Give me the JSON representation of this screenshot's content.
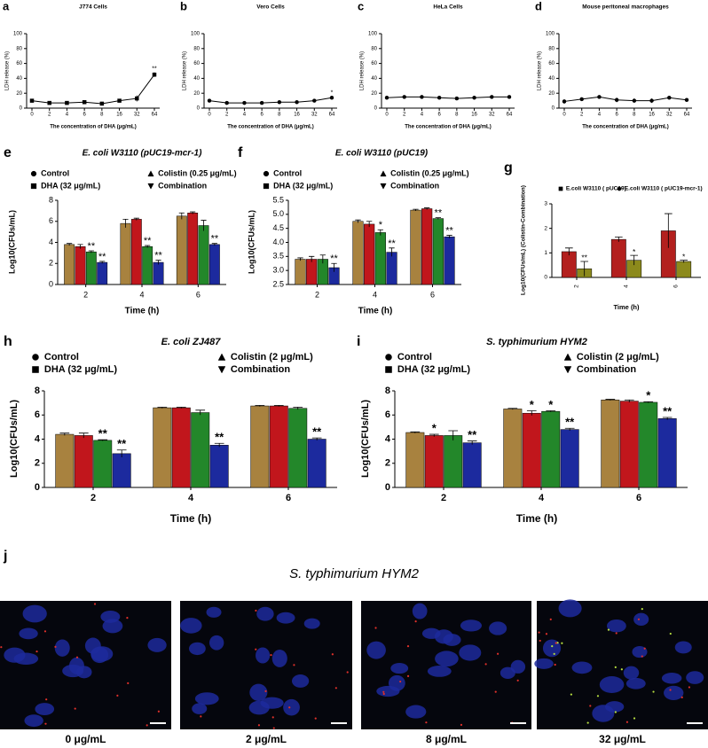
{
  "chart_data": [
    {
      "panel_label": "a",
      "type": "line",
      "title": "J774 Cells",
      "x_label": "The concentration of DHA (μg/mL)",
      "y_label": "LDH release (%)",
      "categories": [
        "0",
        "2",
        "4",
        "6",
        "8",
        "16",
        "32",
        "64"
      ],
      "ylim": [
        0,
        100
      ],
      "yticks": [
        0,
        20,
        40,
        60,
        80,
        100
      ],
      "series": [
        {
          "color": "#000000",
          "marker": "square",
          "values": [
            10,
            7,
            7,
            8,
            6,
            10,
            13,
            45
          ],
          "errors": [
            2,
            1,
            1,
            1,
            1,
            1,
            4,
            3
          ],
          "significance": [
            null,
            null,
            null,
            null,
            null,
            null,
            null,
            "**"
          ]
        }
      ]
    },
    {
      "panel_label": "b",
      "type": "line",
      "title": "Vero Cells",
      "x_label": "The concentration of DHA (μg/mL)",
      "y_label": "LDH release (%)",
      "categories": [
        "0",
        "2",
        "4",
        "6",
        "8",
        "16",
        "32",
        "64"
      ],
      "ylim": [
        0,
        100
      ],
      "yticks": [
        0,
        20,
        40,
        60,
        80,
        100
      ],
      "series": [
        {
          "color": "#000000",
          "marker": "circle",
          "values": [
            10,
            7,
            7,
            7,
            8,
            8,
            10,
            14
          ],
          "errors": [
            1,
            1,
            1,
            1,
            1,
            1,
            1,
            2
          ],
          "significance": [
            null,
            null,
            null,
            null,
            null,
            null,
            null,
            "*"
          ]
        }
      ]
    },
    {
      "panel_label": "c",
      "type": "line",
      "title": "HeLa Cells",
      "x_label": "The concentration of DHA (μg/mL)",
      "y_label": "LDH release (%)",
      "categories": [
        "0",
        "2",
        "4",
        "6",
        "8",
        "16",
        "32",
        "64"
      ],
      "ylim": [
        0,
        100
      ],
      "yticks": [
        0,
        20,
        40,
        60,
        80,
        100
      ],
      "series": [
        {
          "color": "#000000",
          "marker": "circle",
          "values": [
            14,
            15,
            15,
            14,
            13,
            14,
            15,
            15
          ],
          "errors": [
            1,
            1,
            1,
            1,
            1,
            1,
            1,
            1
          ]
        }
      ]
    },
    {
      "panel_label": "d",
      "type": "line",
      "title": "Mouse peritoneal macrophages",
      "x_label": "The concentration of DHA (μg/mL)",
      "y_label": "LDH release (%)",
      "categories": [
        "0",
        "2",
        "4",
        "6",
        "8",
        "16",
        "32",
        "64"
      ],
      "ylim": [
        0,
        100
      ],
      "yticks": [
        0,
        20,
        40,
        60,
        80,
        100
      ],
      "series": [
        {
          "color": "#000000",
          "marker": "circle",
          "values": [
            9,
            12,
            15,
            11,
            10,
            10,
            14,
            11
          ],
          "errors": [
            3,
            2,
            1,
            3,
            3,
            3,
            2,
            1
          ]
        }
      ]
    },
    {
      "panel_label": "e",
      "type": "bar",
      "title": "E. coli W3110 (pUC19-mcr-1)",
      "x_label": "Time (h)",
      "y_label": "Log10(CFUs/mL)",
      "categories": [
        "2",
        "4",
        "6"
      ],
      "ylim": [
        0,
        8
      ],
      "yticks": [
        0,
        2,
        4,
        6,
        8
      ],
      "series": [
        {
          "name": "Control",
          "marker": "circle",
          "color": "#a8823f",
          "values": [
            3.8,
            5.8,
            6.5
          ],
          "errors": [
            0.1,
            0.4,
            0.3
          ]
        },
        {
          "name": "DHA (32 μg/mL)",
          "marker": "square",
          "color": "#c1161c",
          "values": [
            3.6,
            6.2,
            6.8
          ],
          "errors": [
            0.2,
            0.1,
            0.1
          ]
        },
        {
          "name": "Colistin (0.25 μg/mL)",
          "marker": "triangle",
          "color": "#23872a",
          "values": [
            3.1,
            3.6,
            5.6
          ],
          "errors": [
            0.1,
            0.1,
            0.5
          ],
          "significance": [
            "**",
            "**",
            null
          ]
        },
        {
          "name": "Combination",
          "marker": "triangle-down",
          "color": "#1c2a9e",
          "values": [
            2.1,
            2.1,
            3.8
          ],
          "errors": [
            0.1,
            0.2,
            0.1
          ],
          "significance": [
            "**",
            "**",
            "**"
          ]
        }
      ]
    },
    {
      "panel_label": "f",
      "type": "bar",
      "title": "E. coli W3110 (pUC19)",
      "x_label": "Time (h)",
      "y_label": "Log10(CFUs/mL)",
      "categories": [
        "2",
        "4",
        "6"
      ],
      "ylim": [
        2.5,
        5.5
      ],
      "yticks": [
        {
          "value": 2.5,
          "label": "2.5"
        },
        {
          "value": 3,
          "label": "3.0"
        },
        {
          "value": 3.5,
          "label": "3.5"
        },
        {
          "value": 4,
          "label": "4.0"
        },
        {
          "value": 4.5,
          "label": "4.5"
        },
        {
          "value": 5,
          "label": "5.0"
        },
        {
          "value": 5.5,
          "label": "5.5"
        }
      ],
      "series": [
        {
          "name": "Control",
          "marker": "circle",
          "color": "#a8823f",
          "values": [
            3.4,
            4.75,
            5.15
          ],
          "errors": [
            0.05,
            0.05,
            0.03
          ]
        },
        {
          "name": "DHA (32 μg/mL)",
          "marker": "square",
          "color": "#c1161c",
          "values": [
            3.4,
            4.65,
            5.2
          ],
          "errors": [
            0.1,
            0.1,
            0.03
          ]
        },
        {
          "name": "Colistin (0.25 μg/mL)",
          "marker": "triangle",
          "color": "#23872a",
          "values": [
            3.4,
            4.35,
            4.85
          ],
          "errors": [
            0.15,
            0.1,
            0.03
          ],
          "significance": [
            null,
            "*",
            "**"
          ]
        },
        {
          "name": "Combination",
          "marker": "triangle-down",
          "color": "#1c2a9e",
          "values": [
            3.1,
            3.65,
            4.2
          ],
          "errors": [
            0.15,
            0.15,
            0.05
          ],
          "significance": [
            "**",
            "**",
            "**"
          ]
        }
      ]
    },
    {
      "panel_label": "g",
      "type": "bar",
      "x_label": "Time (h)",
      "y_label": "Log10(CFUs/mL) (Colistin-Combination)",
      "categories": [
        "2",
        "4",
        "6"
      ],
      "ylim": [
        0,
        3
      ],
      "yticks": [
        0,
        1,
        2,
        3
      ],
      "series": [
        {
          "name": "E.coli W3110 ( pUC19)",
          "marker": "square",
          "color": "#b3201e",
          "values": [
            1.05,
            1.55,
            1.9
          ],
          "errors": [
            0.15,
            0.1,
            0.7
          ]
        },
        {
          "name": "E.coli W3110 ( pUC19-mcr-1)",
          "marker": "circle",
          "color": "#8c8a1c",
          "values": [
            0.35,
            0.7,
            0.65
          ],
          "errors": [
            0.3,
            0.2,
            0.05
          ],
          "significance": [
            "**",
            "*",
            "*"
          ]
        }
      ]
    },
    {
      "panel_label": "h",
      "type": "bar",
      "title": "E. coli ZJ487",
      "x_label": "Time (h)",
      "y_label": "Log10(CFUs/mL)",
      "categories": [
        "2",
        "4",
        "6"
      ],
      "ylim": [
        0,
        8
      ],
      "yticks": [
        0,
        2,
        4,
        6,
        8
      ],
      "series": [
        {
          "name": "Control",
          "marker": "circle",
          "color": "#a8823f",
          "values": [
            4.4,
            6.6,
            6.75
          ],
          "errors": [
            0.1,
            0.05,
            0.05
          ]
        },
        {
          "name": "DHA (32 μg/mL)",
          "marker": "square",
          "color": "#c1161c",
          "values": [
            4.3,
            6.6,
            6.75
          ],
          "errors": [
            0.2,
            0.05,
            0.05
          ]
        },
        {
          "name": "Colistin (2 μg/mL)",
          "marker": "triangle",
          "color": "#23872a",
          "values": [
            3.9,
            6.2,
            6.55
          ],
          "errors": [
            0.05,
            0.2,
            0.1
          ],
          "significance": [
            "**",
            null,
            null
          ]
        },
        {
          "name": "Combination",
          "marker": "triangle-down",
          "color": "#1c2a9e",
          "values": [
            2.8,
            3.5,
            4.0
          ],
          "errors": [
            0.3,
            0.15,
            0.1
          ],
          "significance": [
            "**",
            "**",
            "**"
          ]
        }
      ]
    },
    {
      "panel_label": "i",
      "type": "bar",
      "title": "S. typhimurium HYM2",
      "x_label": "Time (h)",
      "y_label": "Log10(CFUs/mL)",
      "categories": [
        "2",
        "4",
        "6"
      ],
      "ylim": [
        0,
        8
      ],
      "yticks": [
        0,
        2,
        4,
        6,
        8
      ],
      "series": [
        {
          "name": "Control",
          "marker": "circle",
          "color": "#a8823f",
          "values": [
            4.55,
            6.5,
            7.25
          ],
          "errors": [
            0.05,
            0.05,
            0.05
          ]
        },
        {
          "name": "DHA (32 μg/mL)",
          "marker": "square",
          "color": "#c1161c",
          "values": [
            4.3,
            6.15,
            7.15
          ],
          "errors": [
            0.1,
            0.2,
            0.1
          ],
          "significance": [
            "*",
            "*",
            null
          ]
        },
        {
          "name": "Colistin (2 μg/mL)",
          "marker": "triangle",
          "color": "#23872a",
          "values": [
            4.3,
            6.3,
            7.05
          ],
          "errors": [
            0.4,
            0.05,
            0.05
          ],
          "significance": [
            null,
            "*",
            "*"
          ]
        },
        {
          "name": "Combination",
          "marker": "triangle-down",
          "color": "#1c2a9e",
          "values": [
            3.7,
            4.8,
            5.7
          ],
          "errors": [
            0.15,
            0.1,
            0.1
          ],
          "significance": [
            "**",
            "**",
            "**"
          ]
        }
      ]
    }
  ],
  "figure_j": {
    "panel_label": "j",
    "title": "S. typhimurium HYM2",
    "images": [
      {
        "caption": "0 μg/mL"
      },
      {
        "caption": "2 μg/mL"
      },
      {
        "caption": "8 μg/mL"
      },
      {
        "caption": "32 μg/mL"
      }
    ]
  }
}
